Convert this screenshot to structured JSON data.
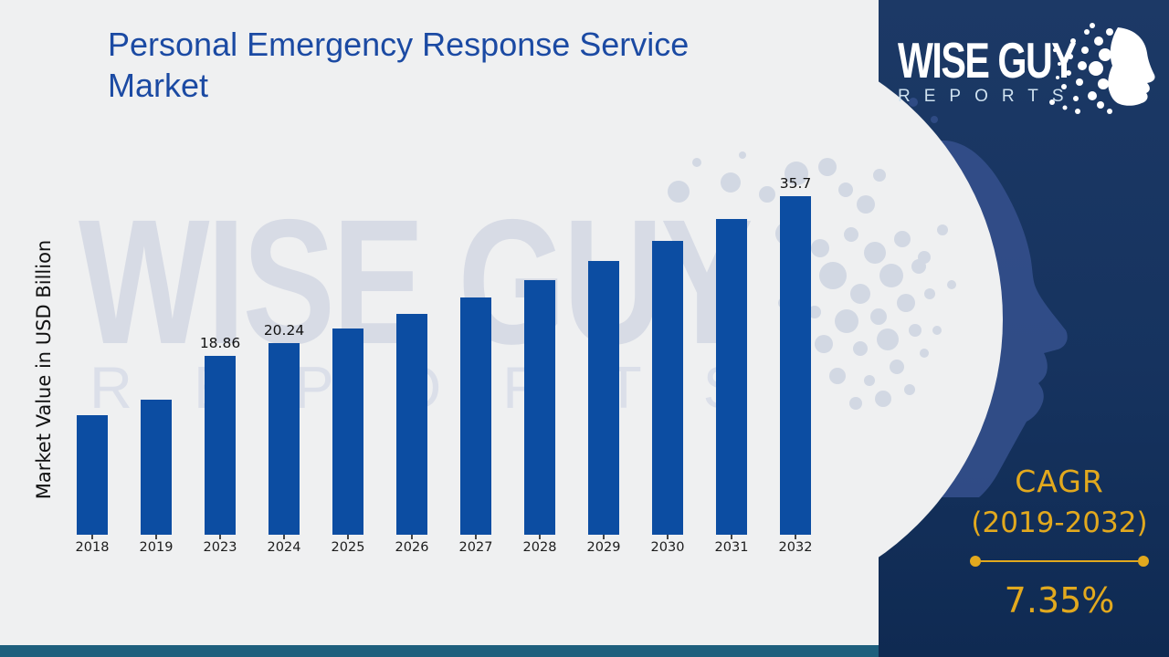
{
  "title": "Personal Emergency Response Service Market",
  "watermark": {
    "brand": "WISE GUY",
    "sub": "REPORTS"
  },
  "logo": {
    "brand": "WISE GUY",
    "sub": "REPORTS"
  },
  "cagr": {
    "heading": "CAGR",
    "range": "(2019-2032)",
    "value": "7.35%"
  },
  "colors": {
    "background": "#eff0f1",
    "bar": "#0c4da2",
    "navy_top": "#1c3966",
    "navy_bottom": "#0f2a52",
    "gold": "#e2a91e",
    "teal_footer": "#1e5f7d",
    "title_blue": "#1b4aa3",
    "watermark_gray": "#d7dbe5"
  },
  "chart_data": {
    "type": "bar",
    "title": "Personal Emergency Response Service Market",
    "xlabel": "",
    "ylabel": "Market Value in USD Billion",
    "categories": [
      "2018",
      "2019",
      "2023",
      "2024",
      "2025",
      "2026",
      "2027",
      "2028",
      "2029",
      "2030",
      "2031",
      "2032"
    ],
    "values": [
      12.6,
      14.25,
      18.86,
      20.24,
      21.73,
      23.33,
      25.05,
      26.88,
      28.86,
      30.98,
      33.26,
      35.7
    ],
    "data_labels": {
      "2023": "18.86",
      "2024": "20.24",
      "2032": "35.7"
    },
    "ylim": [
      0,
      38
    ],
    "grid": false,
    "legend": null
  }
}
